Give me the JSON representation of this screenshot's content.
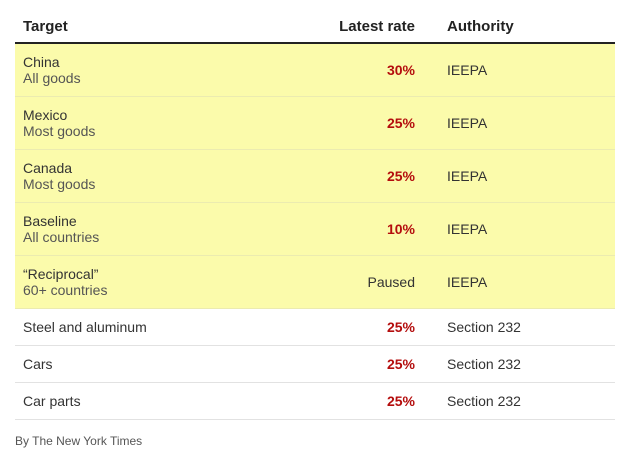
{
  "header": {
    "target": "Target",
    "rate": "Latest rate",
    "authority": "Authority"
  },
  "rows": [
    {
      "target": "China",
      "subtitle": "All goods",
      "rate": "30%",
      "authority": "IEEPA",
      "highlighted": true
    },
    {
      "target": "Mexico",
      "subtitle": "Most goods",
      "rate": "25%",
      "authority": "IEEPA",
      "highlighted": true
    },
    {
      "target": "Canada",
      "subtitle": "Most goods",
      "rate": "25%",
      "authority": "IEEPA",
      "highlighted": true
    },
    {
      "target": "Baseline",
      "subtitle": "All countries",
      "rate": "10%",
      "authority": "IEEPA",
      "highlighted": true
    },
    {
      "target": "“Reciprocal”",
      "subtitle": "60+ countries",
      "rate": "Paused",
      "authority": "IEEPA",
      "highlighted": true
    },
    {
      "target": "Steel and aluminum",
      "rate": "25%",
      "authority": "Section 232",
      "highlighted": false
    },
    {
      "target": "Cars",
      "rate": "25%",
      "authority": "Section 232",
      "highlighted": false
    },
    {
      "target": "Car parts",
      "rate": "25%",
      "authority": "Section 232",
      "highlighted": false
    }
  ],
  "credit": "By The New York Times",
  "colors": {
    "highlight": "#fbfbab",
    "rate_red": "#b40d0d"
  }
}
